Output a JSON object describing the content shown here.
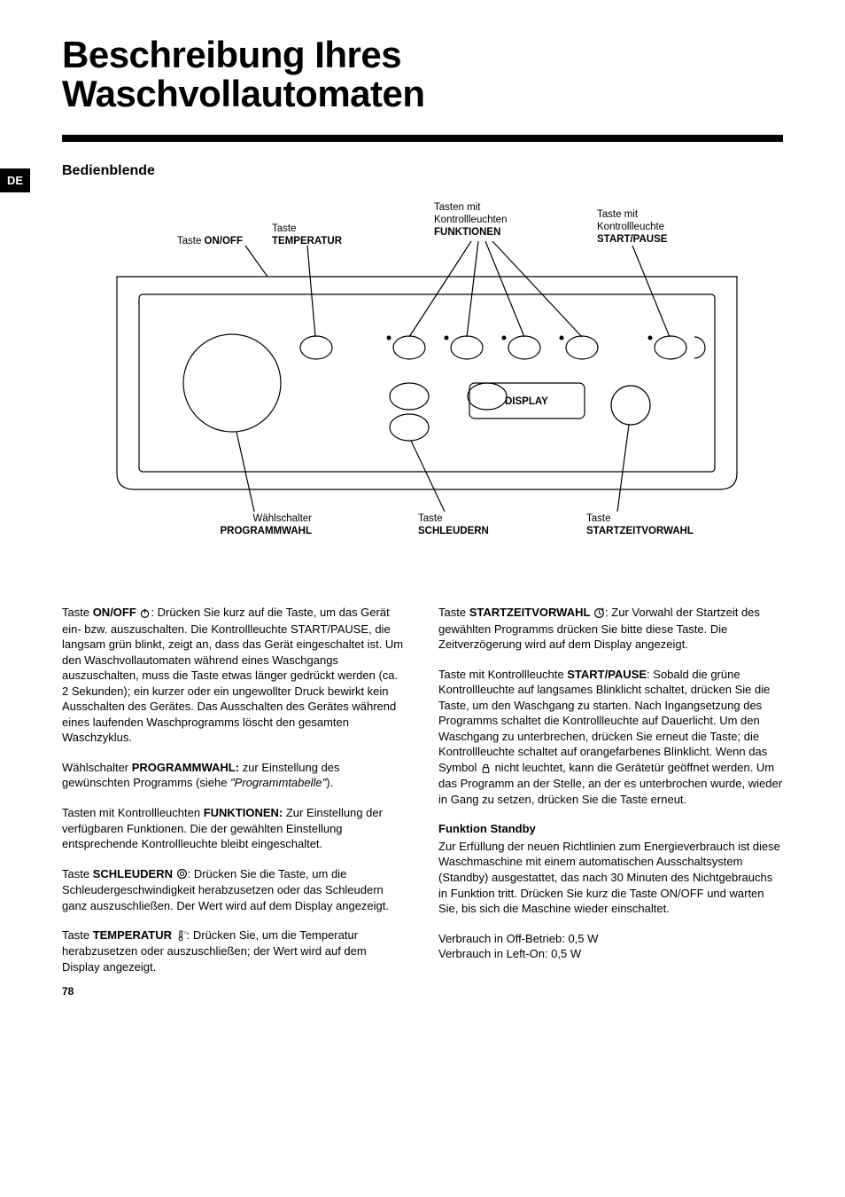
{
  "lang_tab": "DE",
  "title_line1": "Beschreibung Ihres",
  "title_line2": "Waschvollautomaten",
  "section_heading": "Bedienblende",
  "page_number": "78",
  "diagram": {
    "type": "line-diagram",
    "stroke": "#000000",
    "stroke_width": 1.2,
    "background": "#ffffff",
    "callouts": {
      "onoff": {
        "pre": "Taste ",
        "main": "ON/OFF"
      },
      "temperatur": {
        "pre": "Taste",
        "main": "TEMPERATUR"
      },
      "funktionen": {
        "pre": "Tasten mit\nKontrollleuchten",
        "main": "FUNKTIONEN"
      },
      "startpause": {
        "pre": "Taste mit\nKontrollleuchte",
        "main": "START/PAUSE"
      },
      "display": {
        "pre": "",
        "main": "DISPLAY"
      },
      "programmwahl": {
        "pre": "Wählschalter",
        "main": "PROGRAMMWAHL"
      },
      "schleudern": {
        "pre": "Taste",
        "main": "SCHLEUDERN"
      },
      "startzeit": {
        "pre": "Taste",
        "main": "STARTZEITVORWAHL"
      }
    }
  },
  "body": {
    "left": [
      {
        "type": "para",
        "runs": [
          {
            "t": "Taste "
          },
          {
            "t": "ON/OFF",
            "b": true
          },
          {
            "t": " "
          },
          {
            "icon": "power"
          },
          {
            "t": ": Drücken Sie kurz auf die Taste, um das Gerät ein- bzw. auszuschalten. Die Kontrollleuchte START/PAUSE, die langsam grün blinkt, zeigt an, dass das Gerät eingeschaltet ist. Um den Waschvollautomaten während eines Waschgangs auszuschalten, muss die Taste etwas länger gedrückt werden (ca. 2 Sekunden); ein kurzer oder ein ungewollter Druck bewirkt kein Ausschalten des Gerätes. Das Ausschalten des Gerätes während eines laufenden Waschprogramms löscht den gesamten Waschzyklus."
          }
        ]
      },
      {
        "type": "para",
        "runs": [
          {
            "t": "Wählschalter "
          },
          {
            "t": "PROGRAMMWAHL:",
            "b": true
          },
          {
            "t": " zur Einstellung des gewünschten Programms (siehe "
          },
          {
            "t": "\"Programmtabelle\"",
            "i": true
          },
          {
            "t": ")."
          }
        ]
      },
      {
        "type": "para",
        "runs": [
          {
            "t": "Tasten mit Kontrollleuchten "
          },
          {
            "t": "FUNKTIONEN:",
            "b": true
          },
          {
            "t": " Zur Einstellung der verfügbaren Funktionen. Die der gewählten Einstellung entsprechende Kontrollleuchte bleibt eingeschaltet."
          }
        ]
      },
      {
        "type": "para",
        "runs": [
          {
            "t": "Taste "
          },
          {
            "t": "SCHLEUDERN",
            "b": true
          },
          {
            "t": " "
          },
          {
            "icon": "spin"
          },
          {
            "t": ": Drücken Sie die Taste, um die Schleudergeschwindigkeit herabzusetzen oder das Schleudern ganz auszuschließen. Der Wert wird auf dem Display angezeigt."
          }
        ]
      },
      {
        "type": "para",
        "runs": [
          {
            "t": "Taste "
          },
          {
            "t": "TEMPERATUR",
            "b": true
          },
          {
            "t": " "
          },
          {
            "icon": "temp"
          },
          {
            "t": ": Drücken Sie, um die Temperatur herabzusetzen oder auszuschließen; der Wert wird auf dem Display angezeigt."
          }
        ]
      }
    ],
    "right": [
      {
        "type": "para",
        "runs": [
          {
            "t": "Taste "
          },
          {
            "t": "STARTZEITVORWAHL",
            "b": true
          },
          {
            "t": " "
          },
          {
            "icon": "delay"
          },
          {
            "t": ": Zur Vorwahl der Startzeit des gewählten Programms drücken Sie bitte diese Taste. Die Zeitverzögerung wird auf dem Display angezeigt."
          }
        ]
      },
      {
        "type": "para",
        "runs": [
          {
            "t": "Taste mit Kontrollleuchte "
          },
          {
            "t": "START/PAUSE",
            "b": true
          },
          {
            "t": ": Sobald die grüne Kontrollleuchte auf langsames Blinklicht schaltet, drücken Sie die Taste, um den Waschgang zu starten. Nach Ingangsetzung des Programms schaltet die Kontrollleuchte auf Dauerlicht. Um den Waschgang zu unterbrechen, drücken Sie erneut die Taste; die Kontrollleuchte schaltet auf orangefarbenes Blinklicht. Wenn das Symbol "
          },
          {
            "icon": "lock"
          },
          {
            "t": " nicht leuchtet, kann die Gerätetür geöffnet werden. Um das Programm an der Stelle, an der es unterbrochen wurde, wieder in Gang zu setzen, drücken Sie die Taste erneut."
          }
        ]
      },
      {
        "type": "heading",
        "text": "Funktion Standby"
      },
      {
        "type": "para",
        "runs": [
          {
            "t": "Zur Erfüllung der neuen Richtlinien zum Energieverbrauch ist diese Waschmaschine mit einem automatischen Ausschaltsystem (Standby) ausgestattet, das nach 30 Minuten des Nichtgebrauchs in Funktion tritt. Drücken Sie kurz die Taste ON/OFF und warten Sie, bis sich die Maschine wieder einschaltet."
          }
        ]
      },
      {
        "type": "para",
        "runs": [
          {
            "t": "Verbrauch in Off-Betrieb: 0,5 W"
          },
          {
            "br": true
          },
          {
            "t": "Verbrauch in Left-On: 0,5 W"
          }
        ]
      }
    ]
  },
  "icons": {
    "power": "power-icon",
    "spin": "spin-icon",
    "temp": "temp-icon",
    "delay": "delay-icon",
    "lock": "lock-icon"
  }
}
